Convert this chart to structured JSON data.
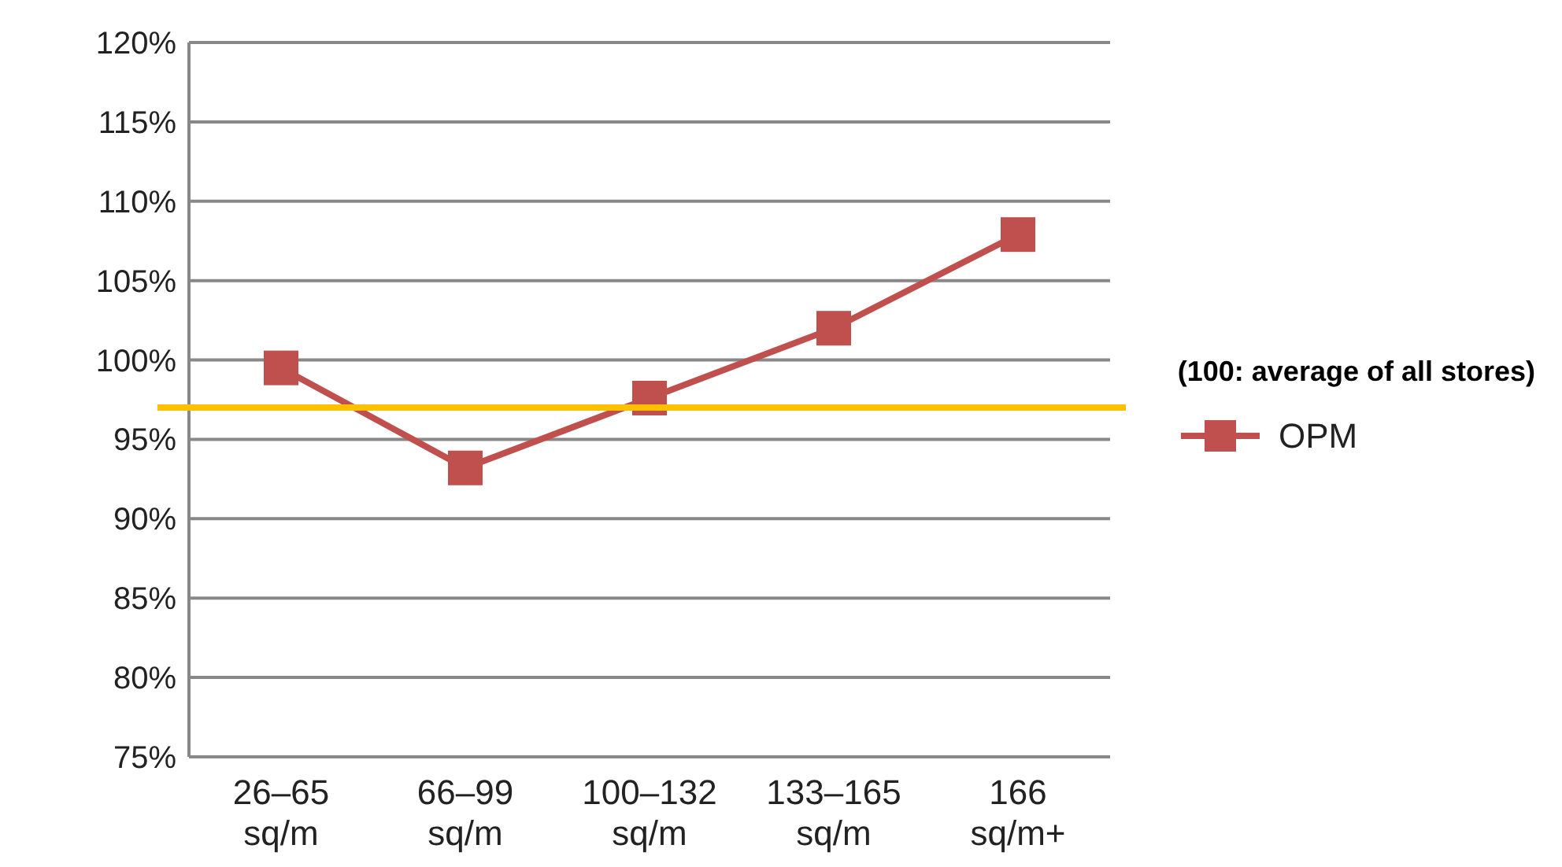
{
  "chart_data": {
    "type": "line",
    "categories": [
      "26–65 sq/m",
      "66–99 sq/m",
      "100–132 sq/m",
      "133–165 sq/m",
      "166 sq/m+"
    ],
    "series": [
      {
        "name": "OPM",
        "color": "#c0504d",
        "values": [
          99.5,
          93.2,
          97.6,
          102,
          107.9
        ]
      }
    ],
    "ylim": [
      75,
      120
    ],
    "yticks": [
      {
        "value": 75,
        "label": "75%"
      },
      {
        "value": 80,
        "label": "80%"
      },
      {
        "value": 85,
        "label": "85%"
      },
      {
        "value": 90,
        "label": "90%"
      },
      {
        "value": 95,
        "label": "95%"
      },
      {
        "value": 100,
        "label": "100%"
      },
      {
        "value": 105,
        "label": "105%"
      },
      {
        "value": 110,
        "label": "110%"
      },
      {
        "value": 115,
        "label": "115%"
      },
      {
        "value": 120,
        "label": "120%"
      }
    ],
    "ref_lines": [
      {
        "axis": "y",
        "value": 97,
        "label": "(100: average of all stores)",
        "color": "#ffc000"
      }
    ],
    "grid": "y",
    "legend": "right",
    "marker": "square",
    "line_style": "solid"
  }
}
